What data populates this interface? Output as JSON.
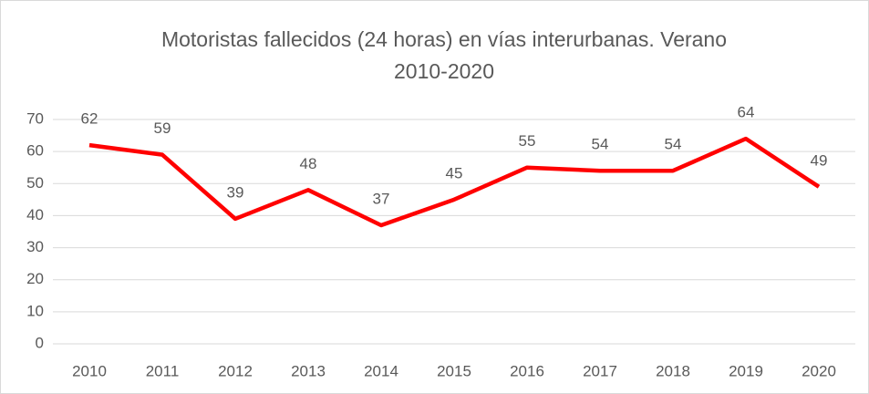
{
  "chart_data": {
    "type": "line",
    "title": [
      "Motoristas fallecidos (24 horas) en vías interurbanas. Verano",
      "2010-2020"
    ],
    "categories": [
      "2010",
      "2011",
      "2012",
      "2013",
      "2014",
      "2015",
      "2016",
      "2017",
      "2018",
      "2019",
      "2020"
    ],
    "series": [
      {
        "name": "Motoristas fallecidos",
        "color": "#ff0000",
        "values": [
          62,
          59,
          39,
          48,
          37,
          45,
          55,
          54,
          54,
          64,
          49
        ]
      }
    ],
    "ylim": [
      0,
      70
    ],
    "yticks": [
      0,
      10,
      20,
      30,
      40,
      50,
      60,
      70
    ],
    "grid": true,
    "legend": false
  }
}
